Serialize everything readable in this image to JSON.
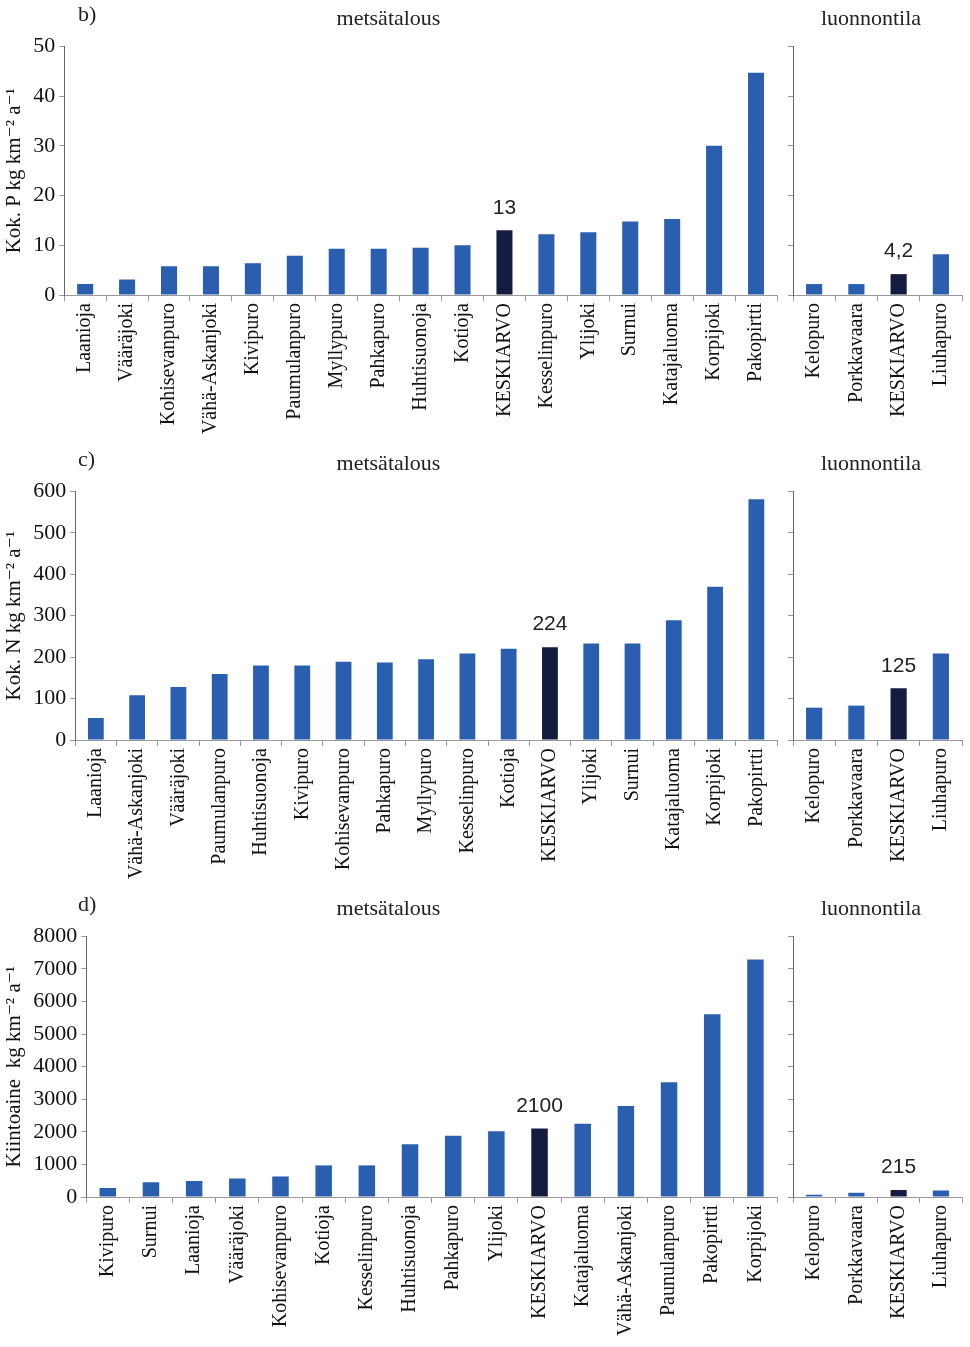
{
  "chart_data": [
    {
      "type": "bar",
      "title": "metsätalous",
      "ylabel": "Kok. P kg km⁻² a⁻¹",
      "annotations": [
        "b)"
      ],
      "grid": false,
      "categories": [
        "Laanioja",
        "Vääräjoki",
        "Kohisevanpuro",
        "Vähä-Askanjoki",
        "Kivipuro",
        "Paumulanpuro",
        "Myllypuro",
        "Pahkapuro",
        "Huhtisuonoja",
        "Kotioja",
        "KESKIARVO",
        "Kesselinpuro",
        "Ylijoki",
        "Surnui",
        "Katajaluoma",
        "Korpijoki",
        "Pakopirtti"
      ],
      "values": [
        2.2,
        3.1,
        5.8,
        5.8,
        6.4,
        7.9,
        9.3,
        9.3,
        9.5,
        10,
        13,
        12.2,
        12.6,
        14.8,
        15.3,
        30,
        44.7
      ],
      "colors": [
        "#2a5fb0",
        "#2a5fb0",
        "#2a5fb0",
        "#2a5fb0",
        "#2a5fb0",
        "#2a5fb0",
        "#2a5fb0",
        "#2a5fb0",
        "#2a5fb0",
        "#2a5fb0",
        "#141c40",
        "#2a5fb0",
        "#2a5fb0",
        "#2a5fb0",
        "#2a5fb0",
        "#2a5fb0",
        "#2a5fb0"
      ],
      "value_labels": [
        null,
        null,
        null,
        null,
        null,
        null,
        null,
        null,
        null,
        null,
        "13",
        null,
        null,
        null,
        null,
        null,
        null
      ],
      "ylim": [
        0,
        50
      ],
      "yticks": [
        0,
        10,
        20,
        30,
        40,
        50
      ]
    },
    {
      "type": "bar",
      "title": "luonnontila",
      "grid": false,
      "tick_labels": "x",
      "categories": [
        "Kelopuro",
        "Porkkavaara",
        "KESKIARVO",
        "Liuhapuro"
      ],
      "values": [
        2.2,
        2.2,
        4.2,
        8.2
      ],
      "colors": [
        "#2a5fb0",
        "#2a5fb0",
        "#141c40",
        "#2a5fb0"
      ],
      "value_labels": [
        null,
        null,
        "4,2",
        null
      ],
      "ylim": [
        0,
        50
      ],
      "yticks": [
        {
          "value": 0,
          "label": null
        },
        {
          "value": 10,
          "label": null
        },
        {
          "value": 20,
          "label": null
        },
        {
          "value": 30,
          "label": null
        },
        {
          "value": 40,
          "label": null
        },
        {
          "value": 50,
          "label": null
        }
      ]
    },
    {
      "type": "bar",
      "title": "metsätalous",
      "ylabel": "Kok. N kg km⁻² a⁻¹",
      "annotations": [
        "c)"
      ],
      "grid": false,
      "categories": [
        "Laanioja",
        "Vähä-Askanjoki",
        "Vääräjoki",
        "Paumulanpuro",
        "Huhtisuonoja",
        "Kivipuro",
        "Kohisevanpuro",
        "Pahkapuro",
        "Myllypuro",
        "Kesselinpuro",
        "Kotioja",
        "KESKIARVO",
        "Ylijoki",
        "Surnui",
        "Katajaluoma",
        "Korpijoki",
        "Pakopirtti"
      ],
      "values": [
        53,
        108,
        128,
        159,
        180,
        180,
        189,
        187,
        195,
        209,
        220,
        224,
        233,
        233,
        289,
        370,
        581
      ],
      "colors": [
        "#2a5fb0",
        "#2a5fb0",
        "#2a5fb0",
        "#2a5fb0",
        "#2a5fb0",
        "#2a5fb0",
        "#2a5fb0",
        "#2a5fb0",
        "#2a5fb0",
        "#2a5fb0",
        "#2a5fb0",
        "#141c40",
        "#2a5fb0",
        "#2a5fb0",
        "#2a5fb0",
        "#2a5fb0",
        "#2a5fb0"
      ],
      "value_labels": [
        null,
        null,
        null,
        null,
        null,
        null,
        null,
        null,
        null,
        null,
        null,
        "224",
        null,
        null,
        null,
        null,
        null
      ],
      "ylim": [
        0,
        600
      ],
      "yticks": [
        0,
        100,
        200,
        300,
        400,
        500,
        600
      ]
    },
    {
      "type": "bar",
      "title": "luonnontila",
      "grid": false,
      "tick_labels": "x",
      "categories": [
        "Kelopuro",
        "Porkkavaara",
        "KESKIARVO",
        "Liuhapuro"
      ],
      "values": [
        78,
        83,
        125,
        209
      ],
      "colors": [
        "#2a5fb0",
        "#2a5fb0",
        "#141c40",
        "#2a5fb0"
      ],
      "value_labels": [
        null,
        null,
        "125",
        null
      ],
      "ylim": [
        0,
        600
      ],
      "yticks": [
        {
          "value": 0,
          "label": null
        },
        {
          "value": 100,
          "label": null
        },
        {
          "value": 200,
          "label": null
        },
        {
          "value": 300,
          "label": null
        },
        {
          "value": 400,
          "label": null
        },
        {
          "value": 500,
          "label": null
        },
        {
          "value": 600,
          "label": null
        }
      ]
    },
    {
      "type": "bar",
      "title": "metsätalous",
      "ylabel": "Kiintoaine  kg km⁻² a⁻¹",
      "annotations": [
        "d)"
      ],
      "grid": false,
      "categories": [
        "Kivipuro",
        "Surnui",
        "Laanioja",
        "Vääräjoki",
        "Kohisevanpuro",
        "Kotioja",
        "Kesselinpuro",
        "Huhtisuonoja",
        "Pahkapuro",
        "Ylijoki",
        "KESKIARVO",
        "Katajaluoma",
        "Vähä-Askanjoki",
        "Paunulanpuro",
        "Pakopirtti",
        "Korpijoki"
      ],
      "values": [
        280,
        450,
        490,
        570,
        630,
        970,
        970,
        1620,
        1880,
        2020,
        2100,
        2250,
        2790,
        3520,
        5610,
        7290
      ],
      "colors": [
        "#2a5fb0",
        "#2a5fb0",
        "#2a5fb0",
        "#2a5fb0",
        "#2a5fb0",
        "#2a5fb0",
        "#2a5fb0",
        "#2a5fb0",
        "#2a5fb0",
        "#2a5fb0",
        "#141c40",
        "#2a5fb0",
        "#2a5fb0",
        "#2a5fb0",
        "#2a5fb0",
        "#2a5fb0"
      ],
      "value_labels": [
        null,
        null,
        null,
        null,
        null,
        null,
        null,
        null,
        null,
        null,
        "2100",
        null,
        null,
        null,
        null,
        null
      ],
      "ylim": [
        0,
        8000
      ],
      "yticks": [
        0,
        1000,
        2000,
        3000,
        4000,
        5000,
        6000,
        7000,
        8000
      ]
    },
    {
      "type": "bar",
      "title": "luonnontila",
      "grid": false,
      "tick_labels": "x",
      "categories": [
        "Kelopuro",
        "Porkkavaara",
        "KESKIARVO",
        "Liuhapuro"
      ],
      "values": [
        70,
        130,
        215,
        200
      ],
      "colors": [
        "#2a5fb0",
        "#2a5fb0",
        "#141c40",
        "#2a5fb0"
      ],
      "value_labels": [
        null,
        null,
        "215",
        null
      ],
      "ylim": [
        0,
        8000
      ],
      "yticks": [
        {
          "value": 0,
          "label": null
        },
        {
          "value": 1000,
          "label": null
        },
        {
          "value": 2000,
          "label": null
        },
        {
          "value": 3000,
          "label": null
        },
        {
          "value": 4000,
          "label": null
        },
        {
          "value": 5000,
          "label": null
        },
        {
          "value": 6000,
          "label": null
        },
        {
          "value": 7000,
          "label": null
        },
        {
          "value": 8000,
          "label": null
        }
      ]
    }
  ]
}
